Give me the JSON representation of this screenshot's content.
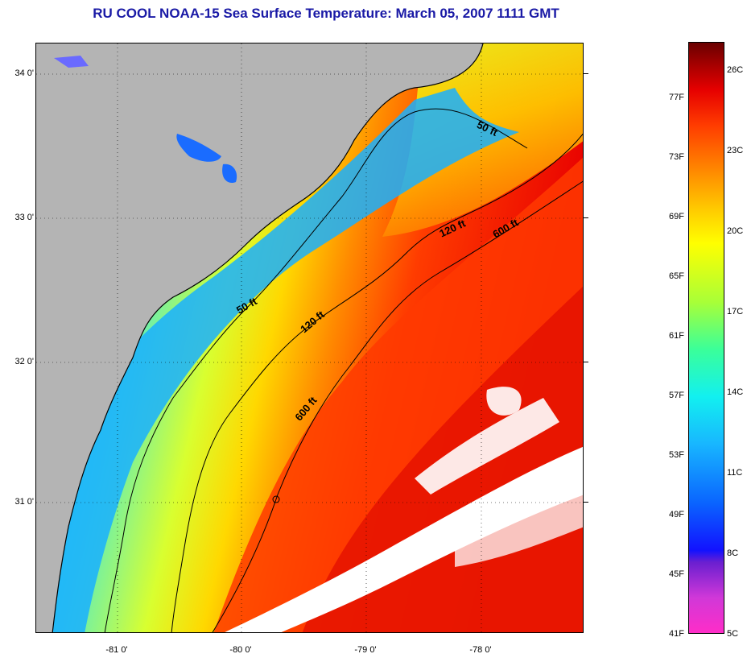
{
  "title": "RU COOL  NOAA-15  Sea Surface Temperature:  March 05, 2007 1111 GMT",
  "map": {
    "lat_labels": [
      "34 0'",
      "33 0'",
      "32 0'",
      "31 0'"
    ],
    "lon_labels": [
      "-81 0'",
      "-80 0'",
      "-79 0'",
      "-78 0'"
    ],
    "contour_labels": [
      "50 ft",
      "120 ft",
      "600 ft",
      "50 ft",
      "120 ft",
      "600 ft"
    ],
    "colors": {
      "land": "#b4b4b4",
      "clouds": "#ffffff",
      "contour": "#000000"
    }
  },
  "colorbar": {
    "fahrenheit": [
      "77F",
      "73F",
      "69F",
      "65F",
      "61F",
      "57F",
      "53F",
      "49F",
      "45F",
      "41F"
    ],
    "celsius": [
      "26C",
      "23C",
      "20C",
      "17C",
      "14C",
      "11C",
      "8C",
      "5C"
    ]
  }
}
